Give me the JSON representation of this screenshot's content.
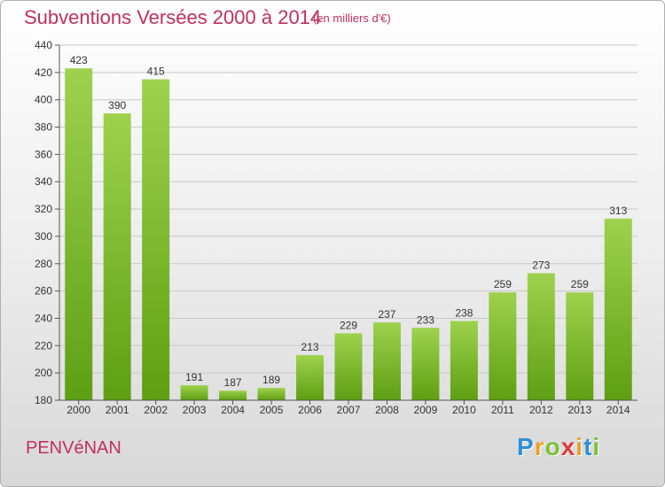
{
  "header": {
    "title": "Subventions Versées 2000 à 2014",
    "subtitle": "(en milliers d'€)"
  },
  "footer": {
    "commune": "PENVéNAN",
    "logo_letters": [
      {
        "ch": "P",
        "color": "#2f8fd6"
      },
      {
        "ch": "r",
        "color": "#f0a020"
      },
      {
        "ch": "o",
        "color": "#7cc03a"
      },
      {
        "ch": "x",
        "color": "#e03a3a"
      },
      {
        "ch": "i",
        "color": "#f0a020"
      },
      {
        "ch": "t",
        "color": "#2f8fd6"
      },
      {
        "ch": "i",
        "color": "#7cc03a"
      }
    ]
  },
  "colors": {
    "title": "#c0305e",
    "bar_top": "#9ed24e",
    "bar_bottom": "#5e9f12",
    "grid": "#c8c8c8",
    "axis": "#555555",
    "label": "#333333"
  },
  "chart_data": {
    "type": "bar",
    "title": "Subventions Versées 2000 à 2014",
    "subtitle": "(en milliers d'€)",
    "categories": [
      "2000",
      "2001",
      "2002",
      "2003",
      "2004",
      "2005",
      "2006",
      "2007",
      "2008",
      "2009",
      "2010",
      "2011",
      "2012",
      "2013",
      "2014"
    ],
    "values": [
      423,
      390,
      415,
      191,
      187,
      189,
      213,
      229,
      237,
      233,
      238,
      259,
      273,
      259,
      313
    ],
    "ylim": [
      180,
      440
    ],
    "yticks": [
      180,
      200,
      220,
      240,
      260,
      280,
      300,
      320,
      340,
      360,
      380,
      400,
      420,
      440
    ],
    "grid": true,
    "legend": "none"
  }
}
